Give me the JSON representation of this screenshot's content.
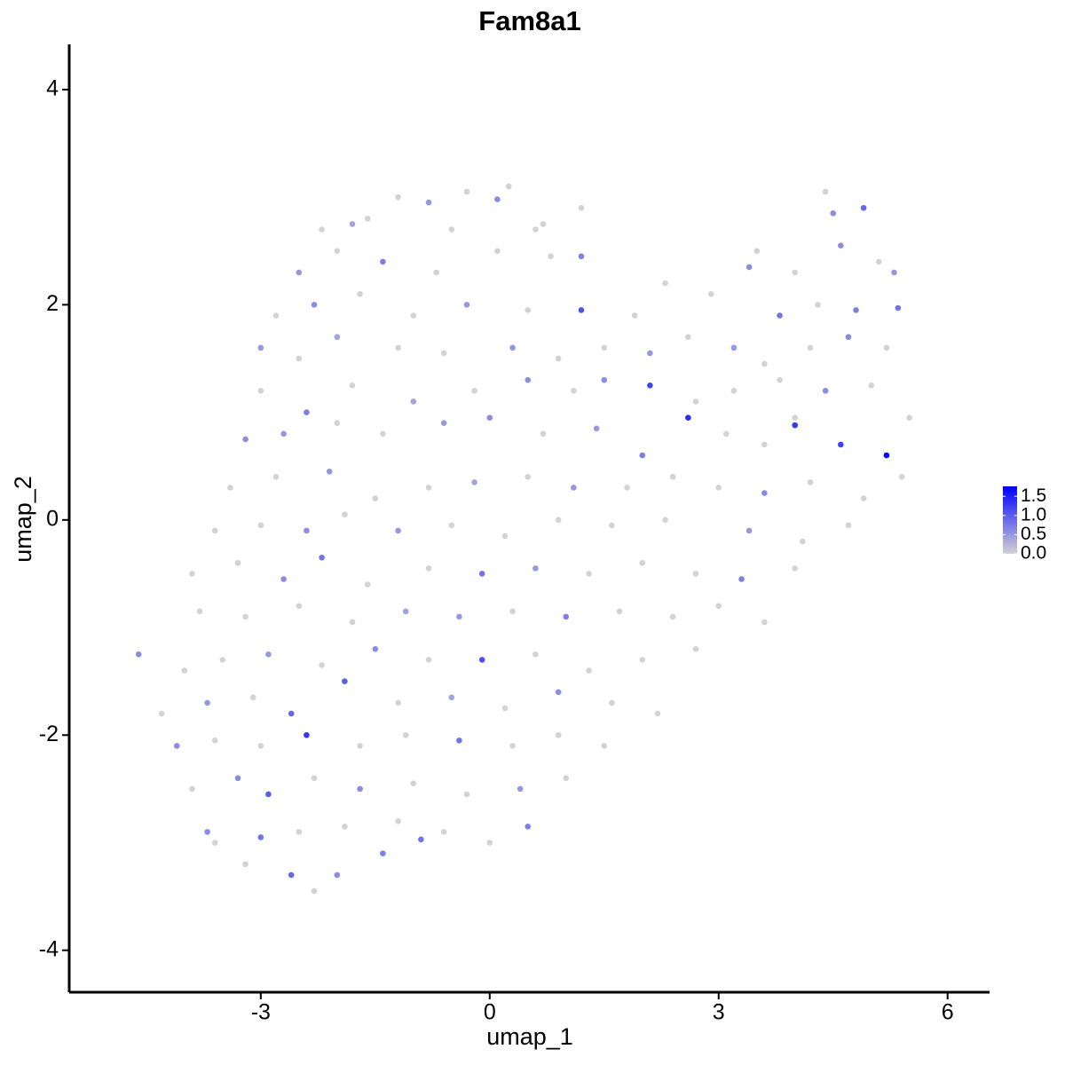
{
  "chart_data": {
    "type": "scatter",
    "title": "Fam8a1",
    "x_label": "umap_1",
    "y_label": "umap_2",
    "xlim": [
      -5.51,
      6.55
    ],
    "ylim": [
      -4.39,
      4.42
    ],
    "xticks": [
      -3,
      0,
      3,
      6
    ],
    "yticks": [
      -4,
      -2,
      0,
      2,
      4
    ],
    "color_low": "#d3d3d3",
    "color_high": "#0000ff",
    "color_lim": [
      0,
      1.76
    ],
    "color_ticks": [
      {
        "value": 0,
        "label": "0.0"
      },
      {
        "value": 0.5,
        "label": "0.5"
      },
      {
        "value": 1,
        "label": "1.0"
      },
      {
        "value": 1.5,
        "label": "1.5"
      }
    ],
    "x": [
      -1.2,
      -0.8,
      -0.3,
      0.1,
      0.25,
      -1.6,
      0.6,
      1.2,
      -2.2,
      -1.8,
      -0.5,
      0.7,
      4.5,
      4.9,
      4.4,
      -2.5,
      -2.0,
      -1.4,
      -0.7,
      0.1,
      0.8,
      1.2,
      3.5,
      4.0,
      4.6,
      5.1,
      5.3,
      -2.8,
      -2.3,
      -1.7,
      -1.0,
      -0.3,
      0.5,
      1.2,
      1.9,
      2.3,
      2.9,
      3.4,
      3.8,
      4.3,
      4.8,
      5.35,
      -3.0,
      -2.5,
      -2.0,
      -1.2,
      -0.6,
      0.3,
      0.9,
      1.5,
      2.1,
      2.6,
      3.2,
      3.6,
      4.2,
      4.7,
      5.2,
      -3.0,
      -2.4,
      -1.8,
      -1.0,
      -0.2,
      0.5,
      1.1,
      1.5,
      2.1,
      2.7,
      3.2,
      3.8,
      4.4,
      5.0,
      4.0,
      -3.2,
      -2.7,
      -2.0,
      -1.4,
      -0.6,
      0.0,
      0.7,
      1.4,
      2.0,
      2.6,
      3.1,
      3.6,
      4.0,
      4.6,
      5.2,
      5.5,
      -3.4,
      -2.8,
      -2.1,
      -1.5,
      -0.8,
      -0.2,
      0.5,
      1.1,
      1.8,
      2.4,
      3.0,
      3.6,
      4.2,
      4.9,
      5.4,
      -3.6,
      -3.0,
      -2.4,
      -1.9,
      -1.2,
      -0.5,
      0.2,
      0.9,
      1.6,
      2.3,
      3.4,
      4.1,
      4.7,
      -3.9,
      -3.3,
      -2.7,
      -2.2,
      -1.6,
      -0.8,
      -0.1,
      0.6,
      1.3,
      2.0,
      2.7,
      3.3,
      4.0,
      -3.8,
      -3.2,
      -2.5,
      -1.8,
      -1.1,
      -0.4,
      0.3,
      1.0,
      1.7,
      2.4,
      3.0,
      3.6,
      -4.6,
      -4.0,
      -3.5,
      -2.9,
      -2.2,
      -1.5,
      -0.8,
      -0.1,
      0.6,
      1.3,
      2.0,
      2.7,
      -4.3,
      -3.7,
      -3.1,
      -2.6,
      -1.9,
      -1.2,
      -0.5,
      0.2,
      0.9,
      1.6,
      2.2,
      -4.1,
      -3.6,
      -3.0,
      -2.4,
      -1.7,
      -1.1,
      -0.4,
      0.3,
      0.9,
      1.5,
      -3.9,
      -3.3,
      -2.9,
      -2.3,
      -1.7,
      -1.0,
      -0.3,
      0.4,
      1.0,
      -3.7,
      -3.0,
      -2.5,
      -1.9,
      -1.2,
      -0.6,
      0.0,
      0.5,
      -0.9,
      -3.2,
      -2.6,
      -2.3,
      -1.4,
      -2.0,
      -3.6
    ],
    "y": [
      3.0,
      2.95,
      3.05,
      2.98,
      3.1,
      2.8,
      2.7,
      2.9,
      2.7,
      2.75,
      2.7,
      2.75,
      2.85,
      2.9,
      3.05,
      2.3,
      2.5,
      2.4,
      2.3,
      2.5,
      2.45,
      2.45,
      2.5,
      2.3,
      2.55,
      2.4,
      2.3,
      1.9,
      2.0,
      2.1,
      1.9,
      2.0,
      1.95,
      1.95,
      1.9,
      2.2,
      2.1,
      2.35,
      1.9,
      2.0,
      1.95,
      1.97,
      1.6,
      1.5,
      1.7,
      1.6,
      1.55,
      1.6,
      1.5,
      1.6,
      1.55,
      1.7,
      1.6,
      1.45,
      1.6,
      1.7,
      1.6,
      1.2,
      1.0,
      1.25,
      1.1,
      1.2,
      1.3,
      1.2,
      1.3,
      1.25,
      1.1,
      1.2,
      1.3,
      1.2,
      1.25,
      0.95,
      0.75,
      0.8,
      0.9,
      0.8,
      0.9,
      0.95,
      0.8,
      0.85,
      0.6,
      0.95,
      0.8,
      0.7,
      0.88,
      0.7,
      0.6,
      0.95,
      0.3,
      0.4,
      0.45,
      0.2,
      0.3,
      0.35,
      0.4,
      0.3,
      0.3,
      0.4,
      0.3,
      0.25,
      0.35,
      0.2,
      0.4,
      -0.1,
      -0.05,
      -0.1,
      0.05,
      -0.1,
      -0.05,
      -0.15,
      0.0,
      -0.05,
      0.0,
      -0.1,
      -0.2,
      -0.05,
      -0.5,
      -0.4,
      -0.55,
      -0.35,
      -0.6,
      -0.45,
      -0.5,
      -0.45,
      -0.5,
      -0.4,
      -0.5,
      -0.55,
      -0.45,
      -0.85,
      -0.9,
      -0.8,
      -0.95,
      -0.85,
      -0.9,
      -0.85,
      -0.9,
      -0.85,
      -0.9,
      -0.8,
      -0.95,
      -1.25,
      -1.4,
      -1.3,
      -1.25,
      -1.35,
      -1.2,
      -1.3,
      -1.3,
      -1.25,
      -1.4,
      -1.3,
      -1.2,
      -1.8,
      -1.7,
      -1.65,
      -1.8,
      -1.5,
      -1.7,
      -1.65,
      -1.75,
      -1.6,
      -1.7,
      -1.8,
      -2.1,
      -2.05,
      -2.1,
      -2.0,
      -2.1,
      -2.0,
      -2.05,
      -2.1,
      -2.0,
      -2.1,
      -2.5,
      -2.4,
      -2.55,
      -2.4,
      -2.5,
      -2.45,
      -2.55,
      -2.5,
      -2.4,
      -2.9,
      -2.95,
      -2.9,
      -2.85,
      -2.8,
      -2.9,
      -3.0,
      -2.85,
      -2.97,
      -3.2,
      -3.3,
      -3.45,
      -3.1,
      -3.3,
      -3.0
    ],
    "expression": [
      0,
      0.5,
      0,
      0.6,
      0,
      0,
      0,
      0,
      0,
      0.4,
      0,
      0,
      0.6,
      0.9,
      0,
      0.5,
      0,
      0.7,
      0,
      0,
      0,
      0.7,
      0,
      0,
      0.6,
      0,
      0.5,
      0,
      0.6,
      0,
      0,
      0.5,
      0,
      1.1,
      0,
      0,
      0,
      0.6,
      0.8,
      0,
      0.7,
      0.8,
      0.5,
      0,
      0.4,
      0,
      0,
      0.5,
      0,
      0,
      0.5,
      0,
      0.5,
      0,
      0,
      0.6,
      0,
      0,
      0.7,
      0,
      0.4,
      0,
      0.6,
      0,
      0.6,
      1.2,
      0,
      0,
      0,
      0.6,
      0,
      0,
      0.6,
      0.5,
      0,
      0,
      0.5,
      0.6,
      0,
      0.5,
      0.7,
      1.4,
      0,
      0,
      1.3,
      1.2,
      1.7,
      0,
      0,
      0,
      0.5,
      0,
      0,
      0.4,
      0,
      0.5,
      0,
      0,
      0,
      0.6,
      0,
      0,
      0,
      0,
      0,
      0.6,
      0,
      0.5,
      0,
      0,
      0,
      0,
      0,
      0.5,
      0,
      0,
      0,
      0,
      0.6,
      0.8,
      0,
      0,
      0.8,
      0.5,
      0,
      0,
      0,
      0.7,
      0,
      0,
      0,
      0,
      0,
      0.4,
      0.5,
      0,
      0.7,
      0,
      0,
      0,
      0,
      0.6,
      0,
      0,
      0.5,
      0,
      0.6,
      0,
      1.1,
      0,
      0,
      0,
      0,
      0,
      0.5,
      0,
      0.9,
      1.0,
      0,
      0.4,
      0,
      0.6,
      0,
      0,
      0.6,
      0,
      0,
      1.3,
      0,
      0,
      0.8,
      0,
      0,
      0,
      0,
      0.6,
      1.0,
      0,
      0.6,
      0,
      0,
      0.5,
      0,
      0.6,
      0.8,
      0,
      0,
      0,
      0,
      0,
      0.7,
      0.8,
      0,
      0.9,
      0,
      0.7,
      0.6,
      0
    ]
  }
}
